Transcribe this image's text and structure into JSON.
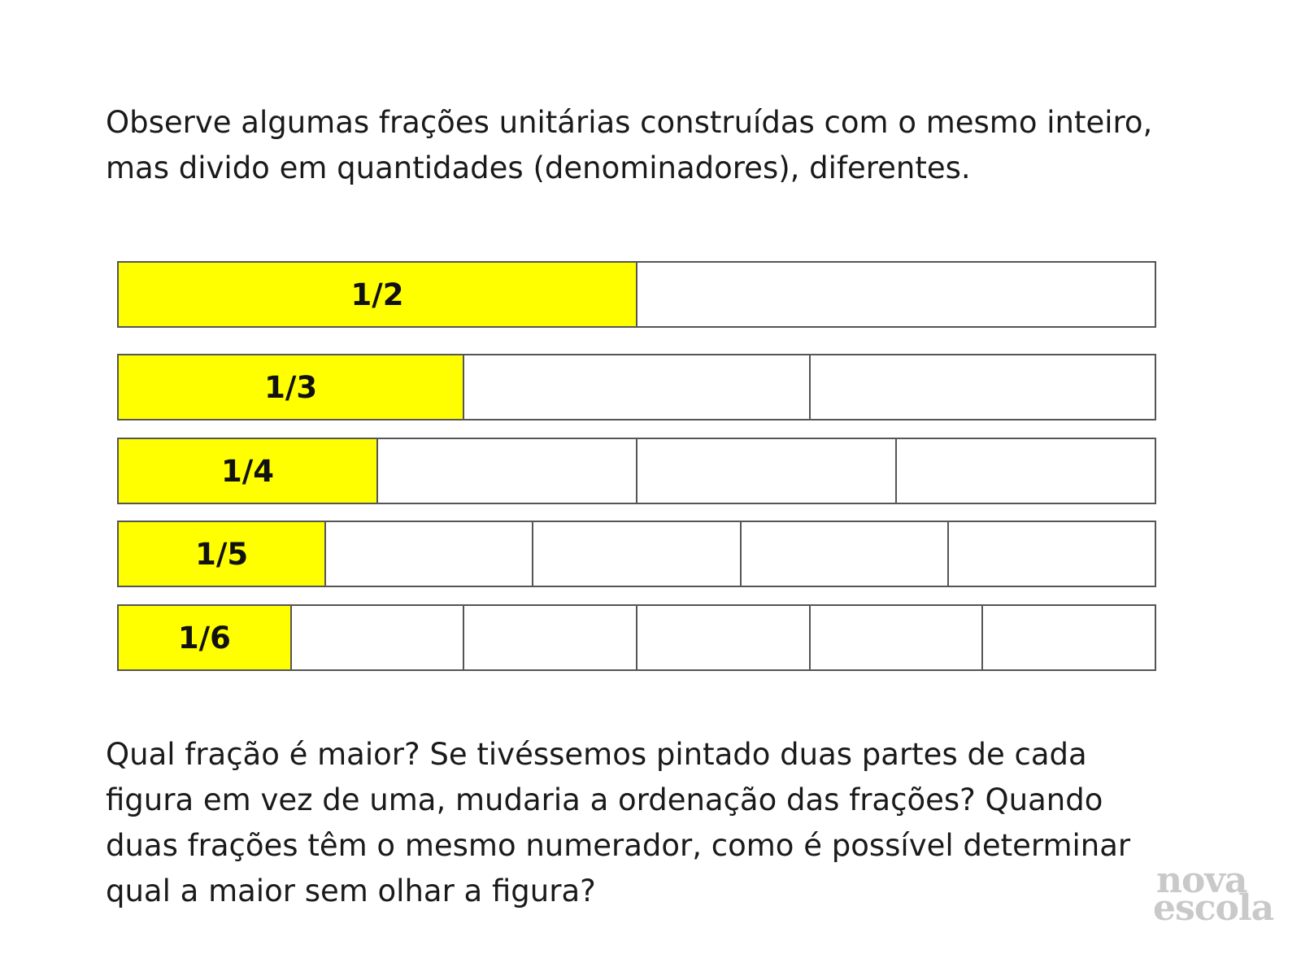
{
  "intro_text": "Observe algumas frações unitárias construídas com o mesmo inteiro, mas divido em quantidades (denominadores), diferentes.",
  "fraction_bars": [
    {
      "label": "1/2",
      "denominator": 2,
      "filled_parts": 1
    },
    {
      "label": "1/3",
      "denominator": 3,
      "filled_parts": 1
    },
    {
      "label": "1/4",
      "denominator": 4,
      "filled_parts": 1
    },
    {
      "label": "1/5",
      "denominator": 5,
      "filled_parts": 1
    },
    {
      "label": "1/6",
      "denominator": 6,
      "filled_parts": 1
    }
  ],
  "colors": {
    "filled": "#ffff00",
    "empty": "#ffffff",
    "border": "#555555",
    "logo": "#c9c9c9"
  },
  "question_text": "Qual fração é maior? Se tivéssemos pintado duas partes de cada figura em vez de uma, mudaria a ordenação das frações? Quando duas frações têm o mesmo numerador, como é possível determinar qual a maior sem olhar a figura?",
  "logo": {
    "line1": "nova",
    "line2": "escola"
  }
}
